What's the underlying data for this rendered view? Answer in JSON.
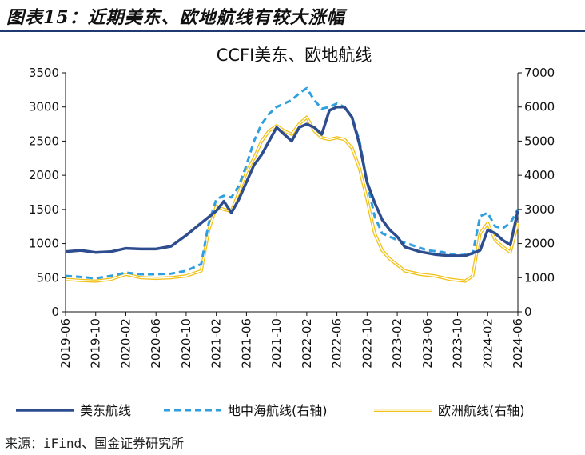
{
  "figure_title": "图表15：近期美东、欧地航线有较大涨幅",
  "source": "来源：iFind、国金证券研究所",
  "colors": {
    "us_east": "#2e4d8f",
    "med": "#2f9fdf",
    "eu": "#f2c219",
    "eu_inner": "#ffffff"
  },
  "chart_data": {
    "type": "line",
    "title": "CCFI美东、欧地航线",
    "x_ticks": [
      "2019-06",
      "2019-10",
      "2020-02",
      "2020-06",
      "2020-10",
      "2021-02",
      "2021-06",
      "2021-10",
      "2022-02",
      "2022-06",
      "2022-10",
      "2023-02",
      "2023-06",
      "2023-10",
      "2024-02",
      "2024-06"
    ],
    "x_range": [
      "2019-06",
      "2024-06"
    ],
    "y_left": {
      "range": [
        0,
        3500
      ],
      "ticks": [
        "0",
        "500",
        "1000",
        "1500",
        "2000",
        "2500",
        "3000",
        "3500"
      ]
    },
    "y_right": {
      "range": [
        0,
        7000
      ],
      "ticks": [
        "0",
        "1000",
        "2000",
        "3000",
        "4000",
        "5000",
        "6000",
        "7000"
      ]
    },
    "grid": false,
    "legend_position": "bottom",
    "series": [
      {
        "name": "美东航线",
        "axis": "left",
        "style": "solid",
        "points": [
          [
            "2019-06",
            880
          ],
          [
            "2019-08",
            900
          ],
          [
            "2019-10",
            870
          ],
          [
            "2019-12",
            880
          ],
          [
            "2020-02",
            930
          ],
          [
            "2020-04",
            920
          ],
          [
            "2020-06",
            920
          ],
          [
            "2020-08",
            960
          ],
          [
            "2020-10",
            1120
          ],
          [
            "2020-12",
            1300
          ],
          [
            "2021-02",
            1480
          ],
          [
            "2021-03",
            1620
          ],
          [
            "2021-04",
            1450
          ],
          [
            "2021-05",
            1650
          ],
          [
            "2021-06",
            1900
          ],
          [
            "2021-07",
            2150
          ],
          [
            "2021-08",
            2300
          ],
          [
            "2021-09",
            2500
          ],
          [
            "2021-10",
            2700
          ],
          [
            "2021-11",
            2600
          ],
          [
            "2021-12",
            2500
          ],
          [
            "2022-01",
            2700
          ],
          [
            "2022-02",
            2750
          ],
          [
            "2022-03",
            2700
          ],
          [
            "2022-04",
            2600
          ],
          [
            "2022-05",
            2950
          ],
          [
            "2022-06",
            3000
          ],
          [
            "2022-07",
            3000
          ],
          [
            "2022-08",
            2850
          ],
          [
            "2022-09",
            2450
          ],
          [
            "2022-10",
            1900
          ],
          [
            "2022-11",
            1600
          ],
          [
            "2022-12",
            1350
          ],
          [
            "2023-01",
            1200
          ],
          [
            "2023-02",
            1100
          ],
          [
            "2023-03",
            950
          ],
          [
            "2023-05",
            880
          ],
          [
            "2023-07",
            840
          ],
          [
            "2023-09",
            820
          ],
          [
            "2023-11",
            820
          ],
          [
            "2024-01",
            900
          ],
          [
            "2024-02",
            1200
          ],
          [
            "2024-03",
            1150
          ],
          [
            "2024-04",
            1050
          ],
          [
            "2024-05",
            980
          ],
          [
            "2024-06",
            1480
          ]
        ]
      },
      {
        "name": "地中海航线(右轴)",
        "axis": "right",
        "style": "dashed",
        "points": [
          [
            "2019-06",
            1050
          ],
          [
            "2019-08",
            1020
          ],
          [
            "2019-10",
            980
          ],
          [
            "2019-12",
            1050
          ],
          [
            "2020-02",
            1150
          ],
          [
            "2020-04",
            1100
          ],
          [
            "2020-06",
            1100
          ],
          [
            "2020-08",
            1120
          ],
          [
            "2020-10",
            1200
          ],
          [
            "2020-12",
            1400
          ],
          [
            "2021-01",
            2600
          ],
          [
            "2021-02",
            3300
          ],
          [
            "2021-03",
            3400
          ],
          [
            "2021-04",
            3350
          ],
          [
            "2021-05",
            3700
          ],
          [
            "2021-06",
            4300
          ],
          [
            "2021-07",
            5000
          ],
          [
            "2021-08",
            5500
          ],
          [
            "2021-09",
            5800
          ],
          [
            "2021-10",
            6000
          ],
          [
            "2021-11",
            6100
          ],
          [
            "2021-12",
            6200
          ],
          [
            "2022-01",
            6400
          ],
          [
            "2022-02",
            6550
          ],
          [
            "2022-03",
            6200
          ],
          [
            "2022-04",
            5950
          ],
          [
            "2022-05",
            6000
          ],
          [
            "2022-06",
            6100
          ],
          [
            "2022-07",
            6000
          ],
          [
            "2022-08",
            5700
          ],
          [
            "2022-09",
            5000
          ],
          [
            "2022-10",
            3800
          ],
          [
            "2022-11",
            2800
          ],
          [
            "2022-12",
            2300
          ],
          [
            "2023-02",
            2100
          ],
          [
            "2023-04",
            1950
          ],
          [
            "2023-06",
            1800
          ],
          [
            "2023-08",
            1750
          ],
          [
            "2023-10",
            1650
          ],
          [
            "2023-12",
            1700
          ],
          [
            "2024-01",
            2800
          ],
          [
            "2024-02",
            2900
          ],
          [
            "2024-03",
            2500
          ],
          [
            "2024-04",
            2450
          ],
          [
            "2024-05",
            2600
          ],
          [
            "2024-06",
            3000
          ]
        ]
      },
      {
        "name": "欧洲航线(右轴)",
        "axis": "right",
        "style": "double",
        "points": [
          [
            "2019-06",
            950
          ],
          [
            "2019-08",
            920
          ],
          [
            "2019-10",
            900
          ],
          [
            "2019-12",
            950
          ],
          [
            "2020-02",
            1100
          ],
          [
            "2020-04",
            1000
          ],
          [
            "2020-06",
            980
          ],
          [
            "2020-08",
            1000
          ],
          [
            "2020-10",
            1050
          ],
          [
            "2020-12",
            1200
          ],
          [
            "2021-01",
            2400
          ],
          [
            "2021-02",
            3100
          ],
          [
            "2021-03",
            3000
          ],
          [
            "2021-04",
            2950
          ],
          [
            "2021-05",
            3500
          ],
          [
            "2021-06",
            4100
          ],
          [
            "2021-07",
            4500
          ],
          [
            "2021-08",
            5000
          ],
          [
            "2021-09",
            5300
          ],
          [
            "2021-10",
            5450
          ],
          [
            "2021-11",
            5300
          ],
          [
            "2021-12",
            5200
          ],
          [
            "2022-01",
            5500
          ],
          [
            "2022-02",
            5700
          ],
          [
            "2022-03",
            5300
          ],
          [
            "2022-04",
            5100
          ],
          [
            "2022-05",
            5050
          ],
          [
            "2022-06",
            5100
          ],
          [
            "2022-07",
            5050
          ],
          [
            "2022-08",
            4800
          ],
          [
            "2022-09",
            4200
          ],
          [
            "2022-10",
            3300
          ],
          [
            "2022-11",
            2300
          ],
          [
            "2022-12",
            1800
          ],
          [
            "2023-01",
            1550
          ],
          [
            "2023-03",
            1200
          ],
          [
            "2023-05",
            1100
          ],
          [
            "2023-07",
            1050
          ],
          [
            "2023-09",
            950
          ],
          [
            "2023-11",
            900
          ],
          [
            "2023-12",
            1050
          ],
          [
            "2024-01",
            2300
          ],
          [
            "2024-02",
            2600
          ],
          [
            "2024-03",
            2100
          ],
          [
            "2024-04",
            1900
          ],
          [
            "2024-05",
            1750
          ],
          [
            "2024-06",
            2600
          ]
        ]
      }
    ]
  }
}
